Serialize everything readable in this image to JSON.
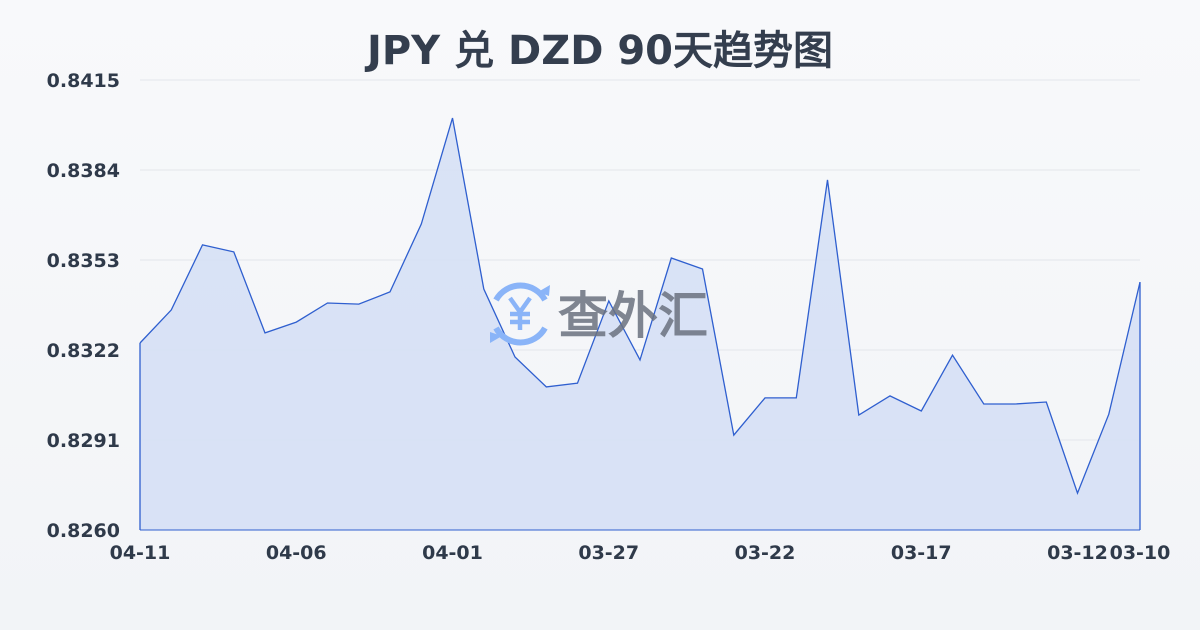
{
  "chart_data": {
    "type": "area",
    "title": "JPY 兑 DZD 90天趋势图",
    "xlabel": "",
    "ylabel": "",
    "ylim": [
      0.826,
      0.8415
    ],
    "y_ticks": [
      "0.8415",
      "0.8384",
      "0.8353",
      "0.8322",
      "0.8291",
      "0.8260"
    ],
    "x_tick_labels": [
      "04-11",
      "04-06",
      "04-01",
      "03-27",
      "03-22",
      "03-17",
      "03-12",
      "03-10"
    ],
    "grid": true,
    "x": [
      "04-11",
      "04-10",
      "04-09",
      "04-08",
      "04-07",
      "04-06",
      "04-05",
      "04-04",
      "04-03",
      "04-02",
      "04-01",
      "03-31",
      "03-30",
      "03-29",
      "03-28",
      "03-27",
      "03-26",
      "03-25",
      "03-24",
      "03-23",
      "03-22",
      "03-21",
      "03-20",
      "03-19",
      "03-18",
      "03-17",
      "03-16",
      "03-15",
      "03-14",
      "03-13",
      "03-12",
      "03-11",
      "03-10"
    ],
    "values": [
      0.83244,
      0.83358,
      0.83582,
      0.83558,
      0.83279,
      0.83316,
      0.83382,
      0.83378,
      0.8342,
      0.83654,
      0.84019,
      0.8343,
      0.83196,
      0.83093,
      0.83106,
      0.83389,
      0.83186,
      0.83537,
      0.83499,
      0.82927,
      0.83055,
      0.83055,
      0.83806,
      0.82996,
      0.83062,
      0.8301,
      0.83202,
      0.83034,
      0.83034,
      0.83041,
      0.82727,
      0.82999,
      0.83454
    ],
    "colors": {
      "line": "#2f5fcf",
      "fill": "#d6e0f5",
      "grid": "#e3e6eb"
    }
  },
  "watermark": {
    "text": "查外汇",
    "icon": "yen-exchange-icon",
    "icon_color": "#8ab4f8"
  }
}
